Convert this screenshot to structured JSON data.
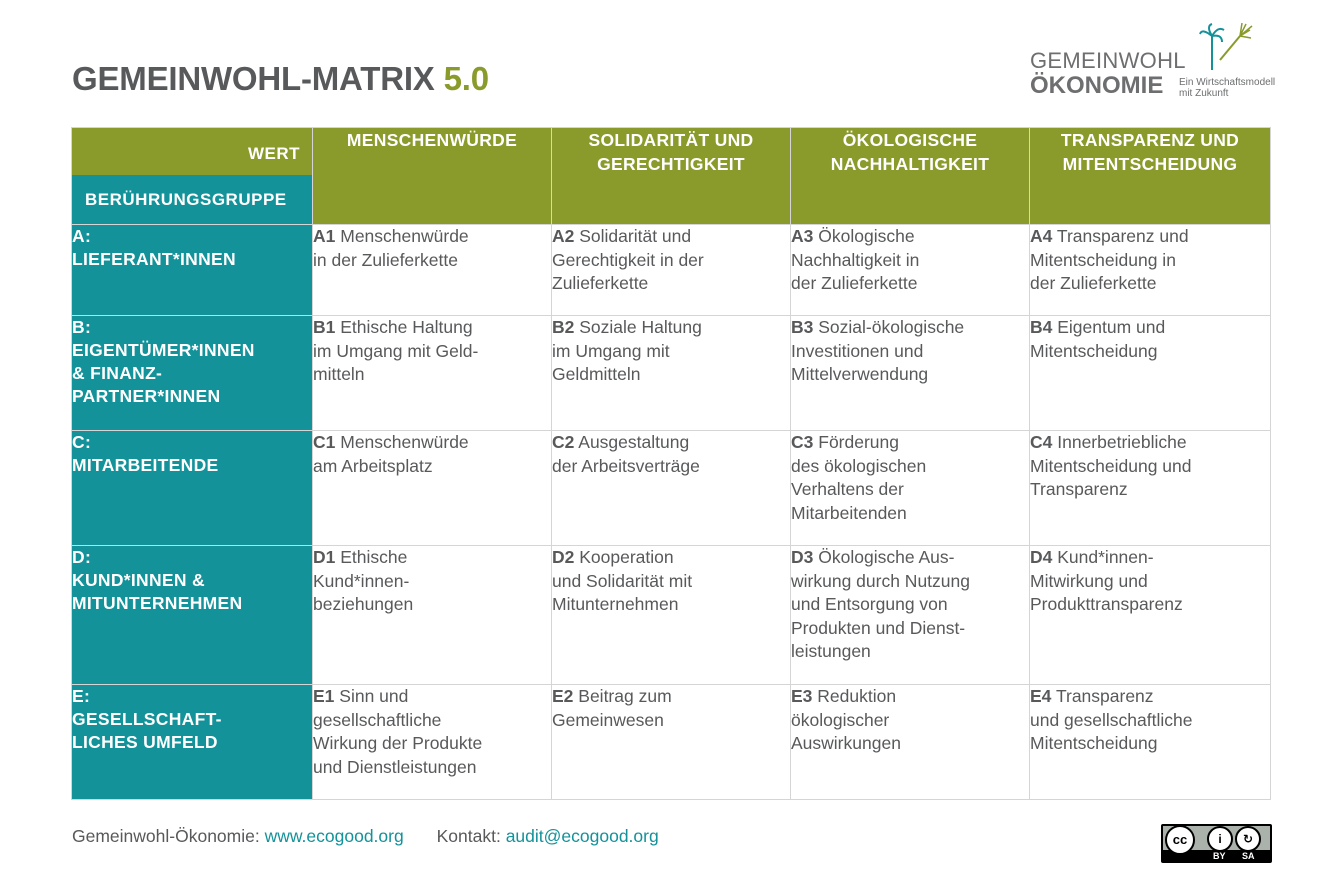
{
  "title": {
    "main": "GEMEINWOHL-MATRIX",
    "version": "5.0"
  },
  "logo": {
    "line1": "GEMEINWOHL",
    "line2": "ÖKONOMIE",
    "tagline1": "Ein Wirtschaftsmodell",
    "tagline2": "mit Zukunft",
    "icon": "palm-tree-dandelion-icon"
  },
  "matrix": {
    "corner": {
      "value_label": "WERT",
      "group_label": "BERÜHRUNGSGRUPPE"
    },
    "values": [
      {
        "line1": "MENSCHENWÜRDE",
        "line2": ""
      },
      {
        "line1": "SOLIDARITÄT UND",
        "line2": "GERECHTIGKEIT"
      },
      {
        "line1": "ÖKOLOGISCHE",
        "line2": "NACHHALTIGKEIT"
      },
      {
        "line1": "TRANSPARENZ UND",
        "line2": "MITENTSCHEIDUNG"
      }
    ],
    "rows": [
      {
        "group": [
          "A:",
          "LIEFERANT*INNEN"
        ],
        "cells": [
          {
            "code": "A1",
            "text": [
              "Menschenwürde",
              "in der Zulieferkette"
            ]
          },
          {
            "code": "A2",
            "text": [
              "Solidarität und",
              "Gerechtigkeit in der",
              "Zulieferkette"
            ]
          },
          {
            "code": "A3",
            "text": [
              "Ökologische",
              "Nachhaltigkeit in",
              "der Zulieferkette"
            ]
          },
          {
            "code": "A4",
            "text": [
              "Transparenz und",
              "Mitentscheidung in",
              "der Zulieferkette"
            ]
          }
        ]
      },
      {
        "group": [
          "B:",
          "EIGENTÜMER*INNEN",
          "& FINANZ-",
          "PARTNER*INNEN"
        ],
        "cells": [
          {
            "code": "B1",
            "text": [
              "Ethische Haltung",
              "im Umgang mit Geld-",
              "mitteln"
            ]
          },
          {
            "code": "B2",
            "text": [
              "Soziale Haltung",
              "im Umgang mit",
              "Geldmitteln"
            ]
          },
          {
            "code": "B3",
            "text": [
              "Sozial-ökologische",
              "Investitionen und",
              "Mittelverwendung"
            ]
          },
          {
            "code": "B4",
            "text": [
              "Eigentum und",
              "Mitentscheidung"
            ]
          }
        ]
      },
      {
        "group": [
          "C:",
          "MITARBEITENDE"
        ],
        "cells": [
          {
            "code": "C1",
            "text": [
              "Menschenwürde",
              "am Arbeitsplatz"
            ]
          },
          {
            "code": "C2",
            "text": [
              "Ausgestaltung",
              "der Arbeitsverträge"
            ]
          },
          {
            "code": "C3",
            "text": [
              "Förderung",
              "des ökologischen",
              "Verhaltens der",
              "Mitarbeitenden"
            ]
          },
          {
            "code": "C4",
            "text": [
              "Innerbetriebliche",
              "Mitentscheidung und",
              "Transparenz"
            ]
          }
        ]
      },
      {
        "group": [
          "D:",
          "KUND*INNEN &",
          "MITUNTERNEHMEN"
        ],
        "cells": [
          {
            "code": "D1",
            "text": [
              "Ethische",
              "Kund*innen-",
              "beziehungen"
            ]
          },
          {
            "code": "D2",
            "text": [
              "Kooperation",
              "und Solidarität mit",
              "Mitunternehmen"
            ]
          },
          {
            "code": "D3",
            "text": [
              "Ökologische Aus-",
              "wirkung durch Nutzung",
              "und Entsorgung von",
              "Produkten und Dienst-",
              "leistungen"
            ]
          },
          {
            "code": "D4",
            "text": [
              "Kund*innen-",
              "Mitwirkung und",
              "Produkttransparenz"
            ]
          }
        ]
      },
      {
        "group": [
          "E:",
          "GESELLSCHAFT-",
          "LICHES UMFELD"
        ],
        "cells": [
          {
            "code": "E1",
            "text": [
              "Sinn und",
              "gesellschaftliche",
              "Wirkung der Produkte",
              "und Dienstleistungen"
            ]
          },
          {
            "code": "E2",
            "text": [
              "Beitrag zum",
              "Gemeinwesen"
            ]
          },
          {
            "code": "E3",
            "text": [
              "Reduktion",
              "ökologischer",
              "Auswirkungen"
            ]
          },
          {
            "code": "E4",
            "text": [
              "Transparenz",
              "und gesellschaftliche",
              "Mitentscheidung"
            ]
          }
        ]
      }
    ]
  },
  "footer": {
    "label1": "Gemeinwohl-Ökonomie:",
    "link1": "www.ecogood.org",
    "label2": "Kontakt:",
    "link2": "audit@ecogood.org"
  },
  "license": {
    "icon": "cc-by-sa-icon",
    "by": "BY",
    "sa": "SA",
    "cc": "cc"
  },
  "colors": {
    "green": "#8a9a2b",
    "teal": "#13929a",
    "text": "#58595b"
  }
}
